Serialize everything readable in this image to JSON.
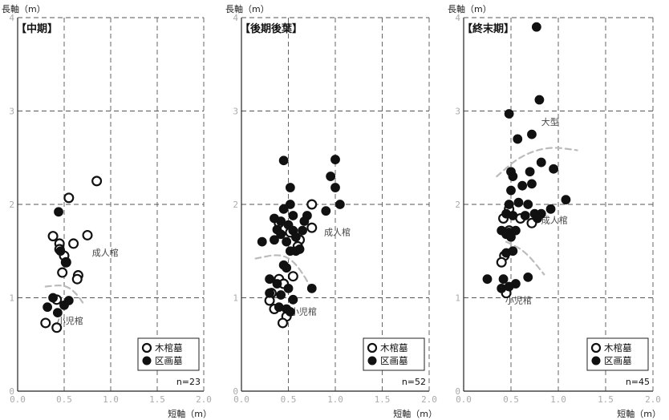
{
  "chart_data": [
    {
      "type": "scatter",
      "title": "【中期】",
      "xlabel": "短軸（m）",
      "ylabel": "長軸（m）",
      "xlim": [
        0,
        2.0
      ],
      "ylim": [
        0,
        4
      ],
      "x_ticks": [
        "0.0",
        "0.5",
        "1.0",
        "1.5",
        "2.0"
      ],
      "y_ticks": [
        "0",
        "1",
        "2",
        "3",
        "4"
      ],
      "n_label": "n=23",
      "legend": [
        {
          "name": "木棺墓",
          "marker": "open"
        },
        {
          "name": "区画墓",
          "marker": "filled"
        }
      ],
      "annotations": [
        {
          "text": "成人棺",
          "x": 0.8,
          "y": 1.45
        },
        {
          "text": "小児棺",
          "x": 0.42,
          "y": 0.72
        }
      ],
      "curves": [
        [
          [
            0.3,
            1.12
          ],
          [
            0.5,
            1.14
          ],
          [
            0.62,
            1.06
          ],
          [
            0.72,
            0.92
          ]
        ]
      ],
      "series": [
        {
          "name": "木棺墓",
          "marker": "open",
          "points": [
            [
              0.85,
              2.25
            ],
            [
              0.55,
              2.07
            ],
            [
              0.38,
              1.66
            ],
            [
              0.45,
              1.58
            ],
            [
              0.6,
              1.58
            ],
            [
              0.75,
              1.67
            ],
            [
              0.45,
              1.52
            ],
            [
              0.5,
              1.45
            ],
            [
              0.52,
              1.38
            ],
            [
              0.48,
              1.27
            ],
            [
              0.65,
              1.24
            ],
            [
              0.64,
              1.2
            ],
            [
              0.42,
              0.98
            ],
            [
              0.3,
              0.73
            ],
            [
              0.42,
              0.68
            ]
          ]
        },
        {
          "name": "区画墓",
          "marker": "filled",
          "points": [
            [
              0.44,
              1.92
            ],
            [
              0.46,
              1.5
            ],
            [
              0.52,
              1.38
            ],
            [
              0.38,
              1.0
            ],
            [
              0.55,
              0.97
            ],
            [
              0.32,
              0.9
            ],
            [
              0.5,
              0.92
            ],
            [
              0.43,
              0.84
            ]
          ]
        }
      ]
    },
    {
      "type": "scatter",
      "title": "【後期後葉】",
      "xlabel": "短軸（m）",
      "ylabel": "長軸（m）",
      "xlim": [
        0,
        2.0
      ],
      "ylim": [
        0,
        4
      ],
      "x_ticks": [
        "0.0",
        "0.5",
        "1.0",
        "1.5",
        "2.0"
      ],
      "y_ticks": [
        "0",
        "1",
        "2",
        "3",
        "4"
      ],
      "n_label": "n=52",
      "legend": [
        {
          "name": "木棺墓",
          "marker": "open"
        },
        {
          "name": "区画墓",
          "marker": "filled"
        }
      ],
      "annotations": [
        {
          "text": "成人棺",
          "x": 0.88,
          "y": 1.67
        },
        {
          "text": "小児棺",
          "x": 0.52,
          "y": 0.82
        }
      ],
      "curves": [
        [
          [
            0.15,
            1.42
          ],
          [
            0.4,
            1.47
          ],
          [
            0.55,
            1.4
          ],
          [
            0.68,
            1.22
          ],
          [
            0.75,
            1.08
          ]
        ]
      ],
      "series": [
        {
          "name": "木棺墓",
          "marker": "open",
          "points": [
            [
              0.75,
              2.0
            ],
            [
              0.4,
              1.8
            ],
            [
              0.52,
              1.7
            ],
            [
              0.75,
              1.75
            ],
            [
              0.62,
              1.62
            ],
            [
              0.6,
              1.55
            ],
            [
              0.4,
              1.2
            ],
            [
              0.55,
              1.23
            ],
            [
              0.45,
              1.15
            ],
            [
              0.32,
              1.05
            ],
            [
              0.3,
              0.97
            ],
            [
              0.35,
              0.88
            ],
            [
              0.48,
              0.8
            ],
            [
              0.44,
              0.73
            ]
          ]
        },
        {
          "name": "区画墓",
          "marker": "filled",
          "points": [
            [
              1.0,
              2.48
            ],
            [
              0.45,
              2.47
            ],
            [
              0.95,
              2.3
            ],
            [
              0.52,
              2.18
            ],
            [
              1.0,
              2.18
            ],
            [
              1.05,
              2.0
            ],
            [
              0.52,
              2.0
            ],
            [
              0.45,
              1.95
            ],
            [
              0.9,
              1.93
            ],
            [
              0.35,
              1.85
            ],
            [
              0.42,
              1.82
            ],
            [
              0.55,
              1.88
            ],
            [
              0.7,
              1.88
            ],
            [
              0.67,
              1.82
            ],
            [
              0.5,
              1.78
            ],
            [
              0.38,
              1.73
            ],
            [
              0.55,
              1.72
            ],
            [
              0.65,
              1.72
            ],
            [
              0.42,
              1.68
            ],
            [
              0.58,
              1.65
            ],
            [
              0.22,
              1.6
            ],
            [
              0.35,
              1.62
            ],
            [
              0.48,
              1.6
            ],
            [
              0.62,
              1.52
            ],
            [
              0.52,
              1.5
            ],
            [
              0.58,
              1.5
            ],
            [
              0.45,
              1.35
            ],
            [
              0.48,
              1.32
            ],
            [
              0.3,
              1.2
            ],
            [
              0.38,
              1.15
            ],
            [
              0.5,
              1.1
            ],
            [
              0.75,
              1.1
            ],
            [
              0.3,
              1.05
            ],
            [
              0.42,
              1.03
            ],
            [
              0.55,
              0.98
            ],
            [
              0.4,
              0.9
            ],
            [
              0.48,
              0.88
            ],
            [
              0.52,
              0.85
            ]
          ]
        }
      ]
    },
    {
      "type": "scatter",
      "title": "【終末期】",
      "xlabel": "短軸（m）",
      "ylabel": "長軸（m）",
      "xlim": [
        0,
        2.0
      ],
      "ylim": [
        0,
        4
      ],
      "x_ticks": [
        "0.0",
        "0.5",
        "1.0",
        "1.5",
        "2.0"
      ],
      "y_ticks": [
        "0",
        "1",
        "2",
        "3",
        "4"
      ],
      "n_label": "n=45",
      "legend": [
        {
          "name": "木棺墓",
          "marker": "open"
        },
        {
          "name": "区画墓",
          "marker": "filled"
        }
      ],
      "annotations": [
        {
          "text": "大型",
          "x": 0.82,
          "y": 2.85
        },
        {
          "text": "成人棺",
          "x": 0.82,
          "y": 1.8
        },
        {
          "text": "小児棺",
          "x": 0.44,
          "y": 0.94
        }
      ],
      "curves": [
        [
          [
            0.35,
            2.3
          ],
          [
            0.6,
            2.52
          ],
          [
            0.9,
            2.62
          ],
          [
            1.2,
            2.58
          ]
        ],
        [
          [
            0.45,
            1.6
          ],
          [
            0.65,
            1.5
          ],
          [
            0.85,
            1.25
          ]
        ]
      ],
      "series": [
        {
          "name": "木棺墓",
          "marker": "open",
          "points": [
            [
              0.48,
              1.95
            ],
            [
              0.42,
              1.85
            ],
            [
              0.6,
              1.85
            ],
            [
              0.72,
              1.8
            ],
            [
              0.48,
              1.72
            ],
            [
              0.43,
              1.45
            ],
            [
              0.4,
              1.38
            ],
            [
              0.45,
              1.05
            ]
          ]
        },
        {
          "name": "区画墓",
          "marker": "filled",
          "points": [
            [
              0.77,
              3.9
            ],
            [
              0.8,
              3.12
            ],
            [
              0.48,
              2.97
            ],
            [
              0.72,
              2.75
            ],
            [
              0.57,
              2.7
            ],
            [
              0.82,
              2.45
            ],
            [
              0.95,
              2.38
            ],
            [
              0.5,
              2.35
            ],
            [
              0.52,
              2.3
            ],
            [
              0.7,
              2.35
            ],
            [
              0.62,
              2.2
            ],
            [
              0.72,
              2.22
            ],
            [
              0.5,
              2.15
            ],
            [
              0.48,
              2.0
            ],
            [
              0.58,
              2.02
            ],
            [
              0.68,
              2.0
            ],
            [
              0.82,
              1.9
            ],
            [
              1.08,
              2.05
            ],
            [
              0.92,
              1.95
            ],
            [
              0.45,
              1.9
            ],
            [
              0.52,
              1.88
            ],
            [
              0.65,
              1.88
            ],
            [
              0.75,
              1.9
            ],
            [
              0.78,
              1.85
            ],
            [
              0.4,
              1.72
            ],
            [
              0.48,
              1.7
            ],
            [
              0.55,
              1.72
            ],
            [
              0.45,
              1.68
            ],
            [
              0.5,
              1.65
            ],
            [
              0.52,
              1.5
            ],
            [
              0.45,
              1.48
            ],
            [
              0.25,
              1.2
            ],
            [
              0.42,
              1.2
            ],
            [
              0.55,
              1.15
            ],
            [
              0.68,
              1.22
            ],
            [
              0.4,
              1.1
            ],
            [
              0.48,
              1.12
            ]
          ]
        }
      ]
    }
  ]
}
